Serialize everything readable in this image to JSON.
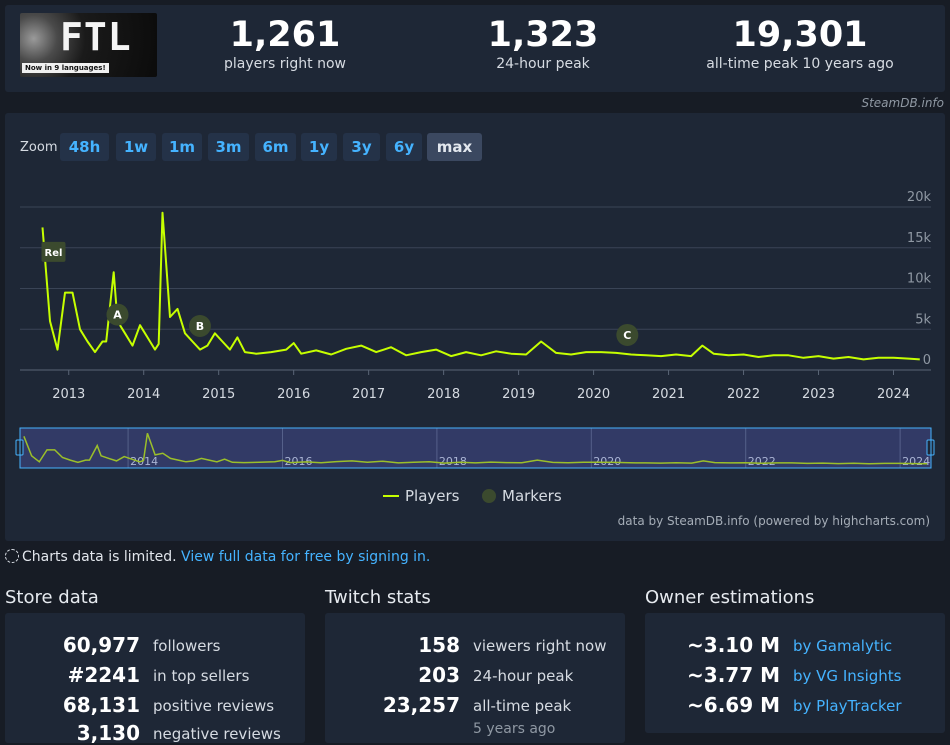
{
  "header": {
    "logo": {
      "title": "FTL",
      "tagline": "Now in 9 languages!"
    },
    "stats": [
      {
        "value": "1,261",
        "label": "players right now"
      },
      {
        "value": "1,323",
        "label": "24-hour peak"
      },
      {
        "value": "19,301",
        "label": "all-time peak 10 years ago"
      }
    ],
    "credit": "SteamDB.info"
  },
  "chart": {
    "zoom_label": "Zoom",
    "zoom_buttons": [
      "48h",
      "1w",
      "1m",
      "3m",
      "6m",
      "1y",
      "3y",
      "6y",
      "max"
    ],
    "active_zoom": "max",
    "legend": {
      "players": "Players",
      "markers": "Markers"
    },
    "footnote": "data by SteamDB.info (powered by highcharts.com)",
    "navigator_labels": [
      "2014",
      "2016",
      "2018",
      "2020",
      "2022",
      "2024"
    ]
  },
  "chart_data": {
    "type": "line",
    "xlabel": "",
    "ylabel": "",
    "ylim": [
      0,
      20000
    ],
    "yticks": [
      "0",
      "5k",
      "10k",
      "15k",
      "20k"
    ],
    "xticks": [
      "2013",
      "2014",
      "2015",
      "2016",
      "2017",
      "2018",
      "2019",
      "2020",
      "2021",
      "2022",
      "2023",
      "2024"
    ],
    "series": [
      {
        "name": "Players",
        "color": "#c6ff00",
        "x": [
          2012.65,
          2012.75,
          2012.85,
          2012.95,
          2013.05,
          2013.15,
          2013.25,
          2013.35,
          2013.45,
          2013.5,
          2013.6,
          2013.65,
          2013.75,
          2013.85,
          2013.95,
          2014.05,
          2014.15,
          2014.2,
          2014.25,
          2014.35,
          2014.45,
          2014.55,
          2014.65,
          2014.75,
          2014.85,
          2014.95,
          2015.05,
          2015.15,
          2015.25,
          2015.35,
          2015.5,
          2015.7,
          2015.9,
          2016.0,
          2016.1,
          2016.3,
          2016.5,
          2016.7,
          2016.9,
          2017.1,
          2017.3,
          2017.5,
          2017.7,
          2017.9,
          2018.1,
          2018.3,
          2018.5,
          2018.7,
          2018.9,
          2019.1,
          2019.3,
          2019.5,
          2019.7,
          2019.9,
          2020.1,
          2020.3,
          2020.5,
          2020.7,
          2020.9,
          2021.1,
          2021.3,
          2021.45,
          2021.6,
          2021.8,
          2022.0,
          2022.2,
          2022.4,
          2022.6,
          2022.8,
          2023.0,
          2023.2,
          2023.4,
          2023.6,
          2023.8,
          2024.0,
          2024.2,
          2024.35
        ],
        "values": [
          17500,
          6000,
          2500,
          9500,
          9500,
          5000,
          3500,
          2200,
          3500,
          3500,
          12000,
          6000,
          4500,
          3000,
          5500,
          4000,
          2500,
          3200,
          19301,
          6500,
          7500,
          4500,
          3500,
          2500,
          3000,
          4500,
          3500,
          2500,
          4000,
          2200,
          2000,
          2200,
          2500,
          3300,
          2000,
          2400,
          1900,
          2600,
          3000,
          2200,
          2800,
          1800,
          2200,
          2500,
          1700,
          2200,
          1800,
          2300,
          2000,
          1900,
          3500,
          2100,
          1900,
          2200,
          2200,
          2100,
          1900,
          1800,
          1700,
          1900,
          1700,
          3000,
          2000,
          1800,
          1900,
          1600,
          1800,
          1800,
          1500,
          1700,
          1400,
          1600,
          1300,
          1500,
          1500,
          1400,
          1300
        ]
      }
    ],
    "markers": [
      {
        "label": "Rel",
        "x": 2012.65,
        "y": 14500
      },
      {
        "label": "A",
        "x": 2013.65,
        "y": 6800
      },
      {
        "label": "B",
        "x": 2014.75,
        "y": 5400
      },
      {
        "label": "C",
        "x": 2020.45,
        "y": 4300
      }
    ]
  },
  "limited": {
    "text": "Charts data is limited.",
    "link": "View full data for free by signing in."
  },
  "store": {
    "title": "Store data",
    "rows": [
      {
        "value": "60,977",
        "label": "followers"
      },
      {
        "value": "#2241",
        "label": "in top sellers"
      },
      {
        "value": "68,131",
        "label": "positive reviews"
      },
      {
        "value": "3,130",
        "label": "negative reviews"
      }
    ]
  },
  "twitch": {
    "title": "Twitch stats",
    "rows": [
      {
        "value": "158",
        "label": "viewers right now"
      },
      {
        "value": "203",
        "label": "24-hour peak"
      },
      {
        "value": "23,257",
        "label": "all-time peak"
      }
    ],
    "peak_ago": "5 years ago"
  },
  "owners": {
    "title": "Owner estimations",
    "rows": [
      {
        "value": "~3.10 M",
        "label": "by Gamalytic"
      },
      {
        "value": "~3.77 M",
        "label": "by VG Insights"
      },
      {
        "value": "~6.69 M",
        "label": "by PlayTracker"
      }
    ]
  }
}
